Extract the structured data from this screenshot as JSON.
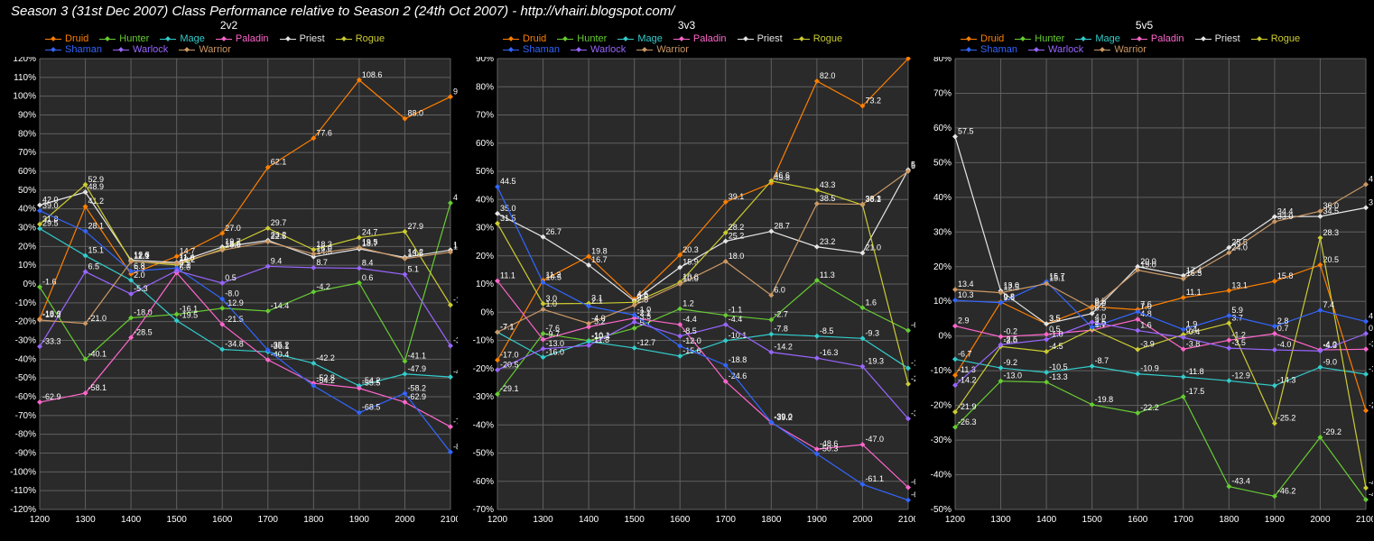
{
  "title": "Season 3 (31st Dec 2007) Class Performance relative to Season 2 (24th Oct 2007) - http://vhairi.blogspot.com/",
  "background_color": "#000000",
  "plot_background": "#2a2a2a",
  "grid_color": "#606060",
  "text_color": "#ffffff",
  "title_fontsize": 15,
  "label_fontsize": 10,
  "datalabel_fontsize": 9,
  "line_width": 1.2,
  "marker_style": "diamond",
  "marker_size": 4,
  "classes": [
    {
      "name": "Druid",
      "color": "#ff7f00"
    },
    {
      "name": "Hunter",
      "color": "#66cc33"
    },
    {
      "name": "Mage",
      "color": "#33cccc"
    },
    {
      "name": "Paladin",
      "color": "#ff66cc"
    },
    {
      "name": "Priest",
      "color": "#e6e6e6"
    },
    {
      "name": "Rogue",
      "color": "#cccc33"
    },
    {
      "name": "Shaman",
      "color": "#3366ff"
    },
    {
      "name": "Warlock",
      "color": "#9966ff"
    },
    {
      "name": "Warrior",
      "color": "#cc9966"
    }
  ],
  "x_categories": [
    1200,
    1300,
    1400,
    1500,
    1600,
    1700,
    1800,
    1900,
    2000,
    2100
  ],
  "panels": [
    {
      "title": "2v2",
      "ylim": [
        -120,
        120
      ],
      "ytick_step": 10,
      "series": {
        "Druid": [
          -18.6,
          41.2,
          5.3,
          14.7,
          27.0,
          62.1,
          77.6,
          108.6,
          88.0,
          99.7
        ],
        "Hunter": [
          -1.6,
          -40.1,
          -18.0,
          -16.1,
          -12.9,
          -14.4,
          -4.2,
          0.6,
          -41.1,
          43.1
        ],
        "Mage": [
          29.5,
          15.1,
          2.0,
          -19.5,
          -34.8,
          -36.1,
          -42.2,
          -54.2,
          -47.9,
          -49.5
        ],
        "Paladin": [
          -62.9,
          -58.1,
          -28.5,
          6.0,
          -21.5,
          -40.4,
          -52.8,
          -55.5,
          -62.9,
          -76.0
        ],
        "Priest": [
          42.0,
          48.9,
          12.8,
          11.4,
          19.7,
          23.2,
          14.5,
          18.7,
          14.2,
          18.1
        ],
        "Rogue": [
          31.8,
          52.9,
          12.1,
          10.2,
          18.5,
          29.7,
          18.3,
          24.7,
          27.9,
          -11.2
        ],
        "Shaman": [
          39.0,
          28.1,
          6.8,
          8.5,
          -8.0,
          -35.2,
          -54.2,
          -68.5,
          -58.2,
          -89.5
        ],
        "Warlock": [
          -33.3,
          6.5,
          -5.3,
          7.1,
          0.5,
          9.4,
          8.7,
          8.4,
          5.1,
          -32.9
        ],
        "Warrior": [
          -19.2,
          -21.0,
          11.9,
          11.0,
          18.0,
          22.5,
          16.0,
          19.5,
          13.5,
          17.0
        ]
      }
    },
    {
      "title": "3v3",
      "ylim": [
        -70,
        90
      ],
      "ytick_step": 10,
      "series": {
        "Druid": [
          -17.0,
          11.3,
          19.8,
          4.6,
          20.3,
          39.1,
          45.8,
          82.0,
          73.2,
          90.0
        ],
        "Hunter": [
          -29.1,
          -7.6,
          -10.1,
          -5.7,
          1.2,
          -1.1,
          -2.7,
          11.3,
          1.6,
          -6.5
        ],
        "Mage": [
          -7.1,
          -16.0,
          -10.4,
          -12.7,
          -15.6,
          -10.1,
          -7.8,
          -8.5,
          -9.3,
          -19.9
        ],
        "Paladin": [
          11.1,
          -9.7,
          -5.2,
          -2.1,
          -4.4,
          -24.6,
          -39.2,
          -48.6,
          -47.0,
          -62.2
        ],
        "Priest": [
          35.0,
          26.7,
          16.7,
          4.0,
          15.9,
          25.2,
          28.7,
          23.2,
          21.0,
          50.5
        ],
        "Rogue": [
          31.5,
          3.0,
          3.1,
          3.5,
          10.6,
          28.2,
          46.6,
          43.3,
          38.1,
          -25.5
        ],
        "Shaman": [
          44.5,
          10.5,
          2.1,
          -1.0,
          -12.0,
          -18.8,
          -39.0,
          -50.3,
          -61.1,
          -66.7
        ],
        "Warlock": [
          -20.5,
          -13.0,
          -11.8,
          -3.5,
          -8.5,
          -4.4,
          -14.2,
          -16.3,
          -19.3,
          -37.8
        ],
        "Warrior": [
          -7.1,
          1.0,
          -4.0,
          2.5,
          10.0,
          18.0,
          6.0,
          38.5,
          38.3,
          50.0
        ]
      }
    },
    {
      "title": "5v5",
      "ylim": [
        -50,
        80
      ],
      "ytick_step": 10,
      "series": {
        "Druid": [
          -11.3,
          9.8,
          3.5,
          8.5,
          7.6,
          11.1,
          13.1,
          15.8,
          20.5,
          -21.5
        ],
        "Hunter": [
          -26.3,
          -13.0,
          -13.3,
          -19.8,
          -22.2,
          -17.5,
          -43.4,
          -46.2,
          -29.2,
          -47.2
        ],
        "Mage": [
          -6.7,
          -9.2,
          -10.5,
          -8.7,
          -10.9,
          -11.8,
          -12.9,
          -14.3,
          -9.0,
          -11.0
        ],
        "Paladin": [
          2.9,
          -0.2,
          0.5,
          1.7,
          4.8,
          -3.8,
          -1.2,
          0.7,
          -4.0,
          -3.8
        ],
        "Priest": [
          57.5,
          13.0,
          3.5,
          6.5,
          20.0,
          17.4,
          25.5,
          34.4,
          34.5,
          37.0
        ],
        "Rogue": [
          -21.9,
          -3.0,
          -4.5,
          2.0,
          -3.9,
          0.4,
          3.7,
          -25.2,
          28.3,
          -43.8
        ],
        "Shaman": [
          10.3,
          9.6,
          15.7,
          2.5,
          7.0,
          1.9,
          5.9,
          2.8,
          7.4,
          4.2
        ],
        "Warlock": [
          -14.2,
          -2.5,
          -1.0,
          4.0,
          1.6,
          -0.4,
          -3.5,
          -4.0,
          -4.3,
          0.7
        ],
        "Warrior": [
          13.4,
          12.5,
          15.1,
          8.0,
          19.0,
          16.5,
          24.0,
          33.0,
          36.0,
          43.7
        ]
      }
    }
  ]
}
